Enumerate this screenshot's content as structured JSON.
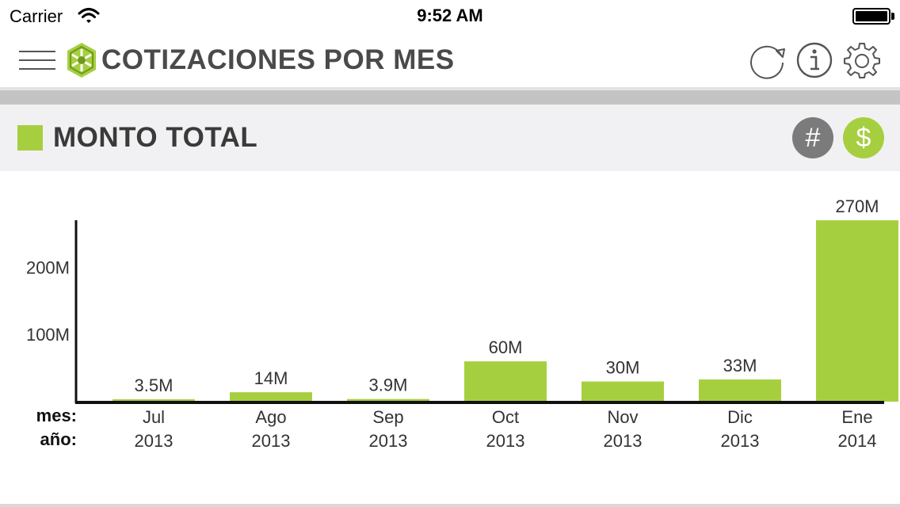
{
  "status_bar": {
    "carrier": "Carrier",
    "time": "9:52 AM"
  },
  "nav": {
    "title": "COTIZACIONES POR MES",
    "icons": [
      "menu-icon",
      "logo-icon",
      "refresh-icon",
      "info-icon",
      "gear-icon"
    ]
  },
  "section": {
    "title": "MONTO TOTAL",
    "toggles": {
      "count": "#",
      "amount": "$",
      "selected": "amount"
    }
  },
  "colors": {
    "accent": "#a6cf3f",
    "inactive_toggle": "#7b7b7b",
    "header_bg": "#f1f1f3",
    "divider": "#c4c4c4",
    "text": "#3a3a3a"
  },
  "chart_data": {
    "type": "bar",
    "categories": [
      "Jul",
      "Ago",
      "Sep",
      "Oct",
      "Nov",
      "Dic",
      "Ene"
    ],
    "years": [
      "2013",
      "2013",
      "2013",
      "2013",
      "2013",
      "2013",
      "2014"
    ],
    "values": [
      3500000,
      14000000,
      3900000,
      60000000,
      30000000,
      33000000,
      270000000
    ],
    "value_labels": [
      "3.5M",
      "14M",
      "3.9M",
      "60M",
      "30M",
      "33M",
      "270M"
    ],
    "row_labels": {
      "month": "mes:",
      "year": "año:"
    },
    "y_ticks": [
      100000000,
      200000000
    ],
    "y_tick_labels": [
      "100M",
      "200M"
    ],
    "ylim": [
      0,
      276000000
    ],
    "grid": false,
    "legend": "none"
  }
}
